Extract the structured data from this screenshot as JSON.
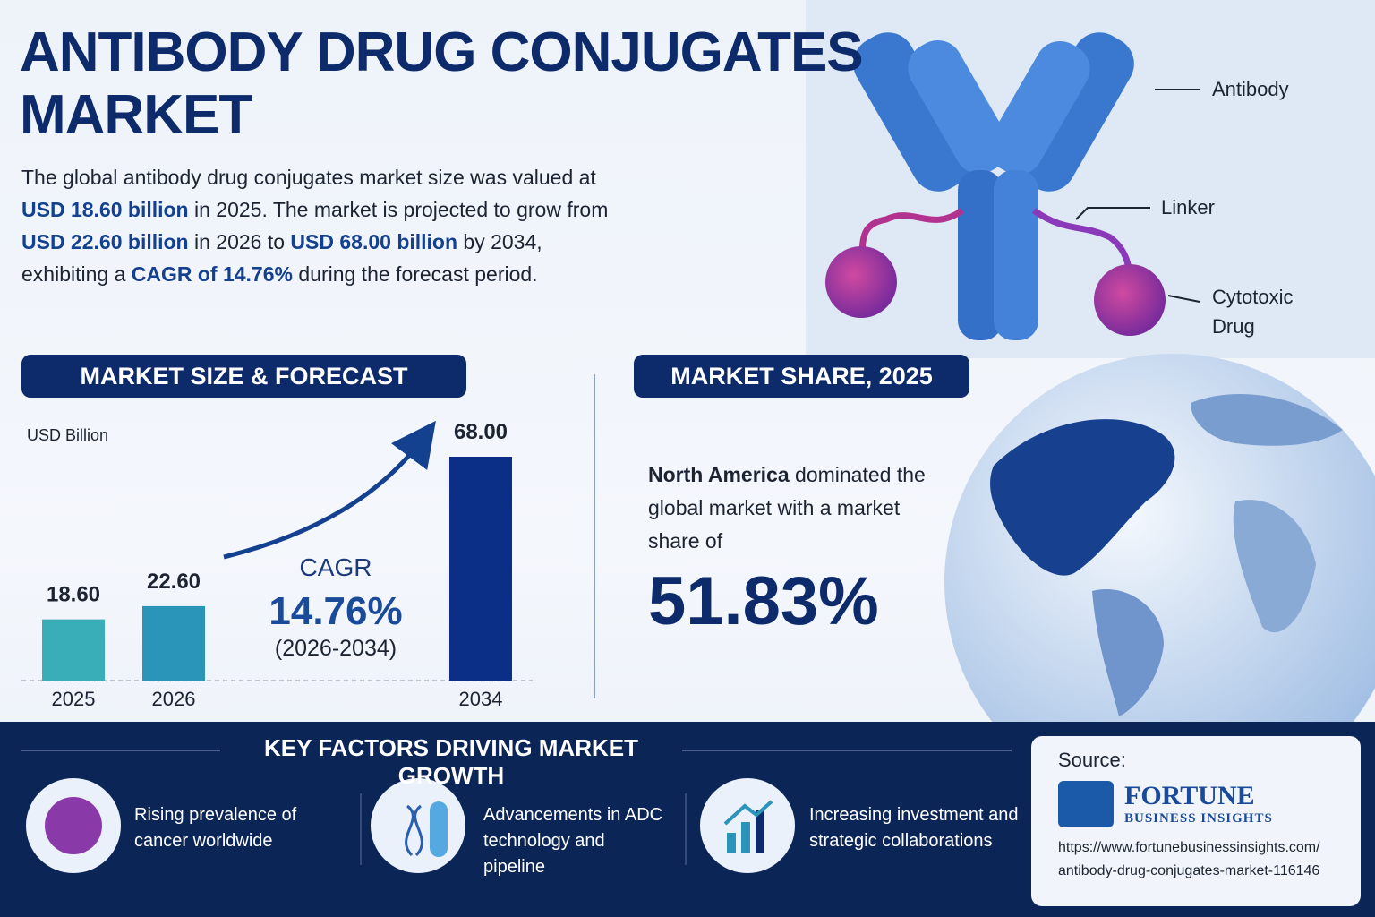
{
  "header": {
    "title": "ANTIBODY DRUG CONJUGATES MARKET"
  },
  "intro": [
    {
      "text": "The global antibody drug conjugates market size was valued at ",
      "bold": false
    },
    {
      "text": "USD 18.60 billion",
      "bold": true
    },
    {
      "text": " in 2025. The market is projected to grow from ",
      "bold": false
    },
    {
      "text": "USD 22.60 billion",
      "bold": true
    },
    {
      "text": " in 2026 to ",
      "bold": false
    },
    {
      "text": "USD 68.00 billion",
      "bold": true
    },
    {
      "text": " by 2034, exhibiting a ",
      "bold": false
    },
    {
      "text": "CAGR of 14.76%",
      "bold": true
    },
    {
      "text": " during the forecast period.",
      "bold": false
    }
  ],
  "diagram_labels": [
    "Antibody",
    "Linker",
    "Cytotoxic Drug"
  ],
  "chart_data": {
    "type": "bar",
    "title": "MARKET SIZE & FORECAST",
    "ylabel": "USD Billion",
    "categories": [
      "2025",
      "2026",
      "2034"
    ],
    "values": [
      18.6,
      22.6,
      68.0
    ],
    "value_labels": [
      "18.60",
      "22.60",
      "68.00"
    ],
    "colors": [
      "#3aaeb8",
      "#2a94b9",
      "#0b2f87"
    ],
    "annotation": {
      "label": "CAGR",
      "value": "14.76%",
      "period": "(2026-2034)"
    }
  },
  "market_share": {
    "title": "MARKET SHARE, 2025",
    "region": "North America",
    "text": " dominated the global market with a market share of",
    "value": "51.83%"
  },
  "key_factors": {
    "title": "KEY FACTORS DRIVING MARKET GROWTH",
    "items": [
      "Rising prevalence of cancer worldwide",
      "Advancements in ADC technology and pipeline",
      "Increasing investment and strategic collaborations"
    ]
  },
  "source": {
    "label": "Source:",
    "brand": "FORTUNE",
    "brand_sub": "BUSINESS INSIGHTS",
    "url_lines": [
      "https://www.fortunebusinessinsights.com/",
      "antibody-drug-conjugates-market-116146"
    ]
  }
}
